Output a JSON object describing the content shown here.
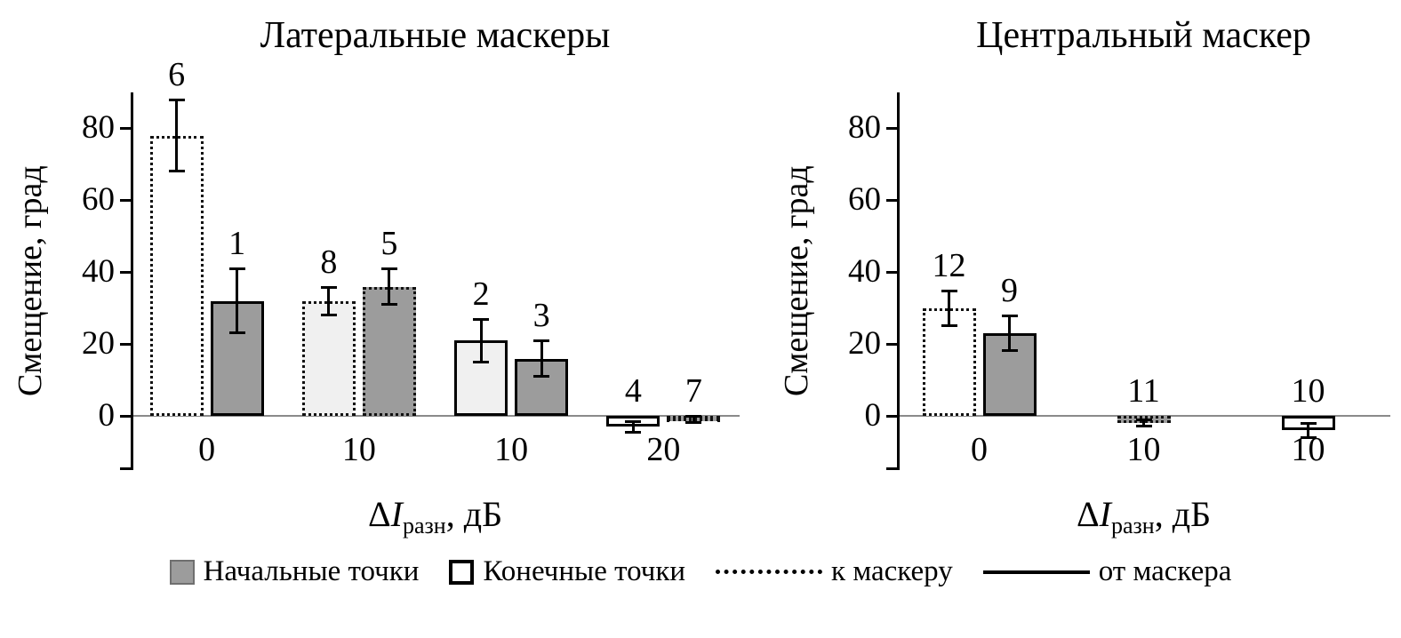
{
  "chart_data": [
    {
      "type": "bar",
      "title": "Латеральные маскеры",
      "ylabel": "Смещение, град",
      "xlabel": {
        "delta": "Δ",
        "symbol": "I",
        "sub": "разн",
        "unit": ", дБ"
      },
      "ylim": [
        -15,
        90
      ],
      "yticks": [
        0,
        20,
        40,
        60,
        80
      ],
      "grid": "off",
      "categories": [
        "0",
        "10",
        "10",
        "20"
      ],
      "bars": [
        {
          "category": 0,
          "label": "6",
          "value": 78,
          "error": 10,
          "fill": "white",
          "border": "dotted"
        },
        {
          "category": 0,
          "label": "1",
          "value": 32,
          "error": 9,
          "fill": "gray",
          "border": "solid"
        },
        {
          "category": 1,
          "label": "8",
          "value": 32,
          "error": 4,
          "fill": "light",
          "border": "dotted"
        },
        {
          "category": 1,
          "label": "5",
          "value": 36,
          "error": 5,
          "fill": "gray",
          "border": "dotted"
        },
        {
          "category": 2,
          "label": "2",
          "value": 21,
          "error": 6,
          "fill": "light",
          "border": "solid"
        },
        {
          "category": 2,
          "label": "3",
          "value": 16,
          "error": 5,
          "fill": "gray",
          "border": "solid"
        },
        {
          "category": 3,
          "label": "4",
          "value": -3,
          "error": 1.5,
          "fill": "white",
          "border": "solid"
        },
        {
          "category": 3,
          "label": "7",
          "value": -1,
          "error": 1,
          "fill": "gray",
          "border": "dotted"
        }
      ]
    },
    {
      "type": "bar",
      "title": "Центральный маскер",
      "ylabel": "Смещение, град",
      "xlabel": {
        "delta": "Δ",
        "symbol": "I",
        "sub": "разн",
        "unit": ", дБ"
      },
      "ylim": [
        -15,
        90
      ],
      "yticks": [
        0,
        20,
        40,
        60,
        80
      ],
      "grid": "off",
      "categories": [
        "0",
        "10",
        "10"
      ],
      "bars": [
        {
          "category": 0,
          "label": "12",
          "value": 30,
          "error": 5,
          "fill": "white",
          "border": "dotted"
        },
        {
          "category": 0,
          "label": "9",
          "value": 23,
          "error": 5,
          "fill": "gray",
          "border": "solid"
        },
        {
          "category": 1,
          "label": "11",
          "value": -2,
          "error": 1,
          "fill": "gray",
          "border": "dotted"
        },
        {
          "category": 2,
          "label": "10",
          "value": -4,
          "error": 2,
          "fill": "white",
          "border": "solid"
        }
      ]
    }
  ],
  "legend": {
    "items": [
      {
        "label": "Начальные точки",
        "swatch": "gray-filled-square"
      },
      {
        "label": "Конечные точки",
        "swatch": "white-outlined-square"
      },
      {
        "label": "к маскеру",
        "swatch": "dotted-line"
      },
      {
        "label": "от маскера",
        "swatch": "solid-line"
      }
    ]
  },
  "colors": {
    "bar_gray": "#9c9c9c",
    "bar_light": "#f0f0f0",
    "bar_white": "#ffffff",
    "axis": "#000000",
    "baseline": "#8a8a8a"
  }
}
